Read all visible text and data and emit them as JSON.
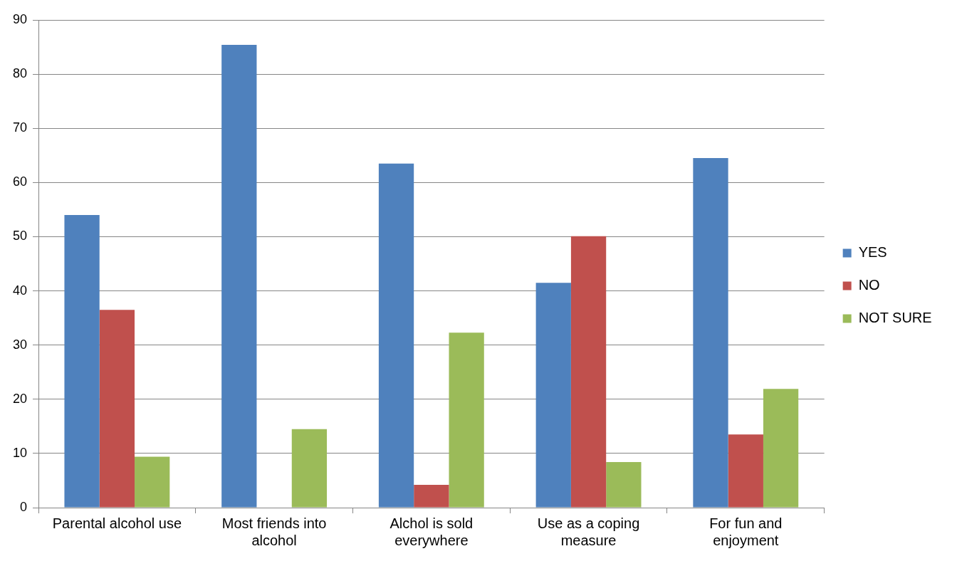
{
  "chart_data": {
    "type": "bar",
    "categories": [
      "Parental alcohol use",
      "Most friends into alcohol",
      "Alchol is sold everywhere",
      "Use as a coping measure",
      "For fun and enjoyment"
    ],
    "series": [
      {
        "name": "YES",
        "color": "#4f81bd",
        "values": [
          54,
          85.4,
          63.5,
          41.5,
          64.5
        ]
      },
      {
        "name": "NO",
        "color": "#c0504d",
        "values": [
          36.5,
          0,
          4.2,
          50.1,
          13.5
        ]
      },
      {
        "name": "NOT SURE",
        "color": "#9bbb59",
        "values": [
          9.4,
          14.5,
          32.3,
          8.4,
          21.9
        ]
      }
    ],
    "ylim": [
      0,
      90
    ],
    "yticks": [
      0,
      10,
      20,
      30,
      40,
      50,
      60,
      70,
      80,
      90
    ],
    "grid": "y",
    "legend": "right"
  }
}
